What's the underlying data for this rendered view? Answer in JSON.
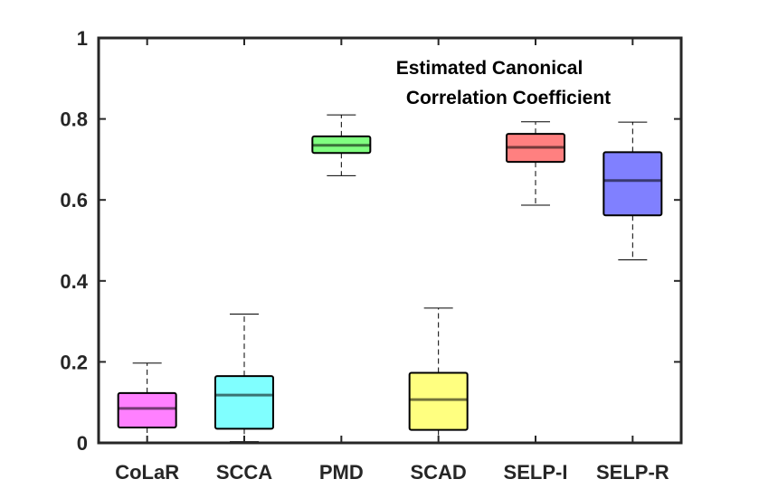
{
  "chart_data": {
    "type": "box",
    "title_lines": [
      "Estimated Canonical",
      "Correlation Coefficient"
    ],
    "xlabel": "",
    "ylabel": "",
    "ylim": [
      0,
      1
    ],
    "yticks": [
      0,
      0.2,
      0.4,
      0.6,
      0.8,
      1
    ],
    "ytick_labels": [
      "0",
      "0.2",
      "0.4",
      "0.6",
      "0.8",
      "1"
    ],
    "categories": [
      "CoLaR",
      "SCCA",
      "PMD",
      "SCAD",
      "SELP-I",
      "SELP-R"
    ],
    "boxes": [
      {
        "name": "CoLaR",
        "whisker_low": 0.0,
        "q1": 0.038,
        "median": 0.085,
        "q3": 0.123,
        "whisker_high": 0.197,
        "color": "#ff80ff"
      },
      {
        "name": "SCCA",
        "whisker_low": 0.003,
        "q1": 0.035,
        "median": 0.118,
        "q3": 0.165,
        "whisker_high": 0.318,
        "color": "#80ffff"
      },
      {
        "name": "PMD",
        "whisker_low": 0.66,
        "q1": 0.716,
        "median": 0.735,
        "q3": 0.757,
        "whisker_high": 0.81,
        "color": "#80ff80"
      },
      {
        "name": "SCAD",
        "whisker_low": 0.0,
        "q1": 0.032,
        "median": 0.107,
        "q3": 0.173,
        "whisker_high": 0.333,
        "color": "#ffff80"
      },
      {
        "name": "SELP-I",
        "whisker_low": 0.587,
        "q1": 0.694,
        "median": 0.73,
        "q3": 0.763,
        "whisker_high": 0.793,
        "color": "#ff8080"
      },
      {
        "name": "SELP-R",
        "whisker_low": 0.452,
        "q1": 0.562,
        "median": 0.648,
        "q3": 0.718,
        "whisker_high": 0.792,
        "color": "#8080ff"
      }
    ]
  }
}
